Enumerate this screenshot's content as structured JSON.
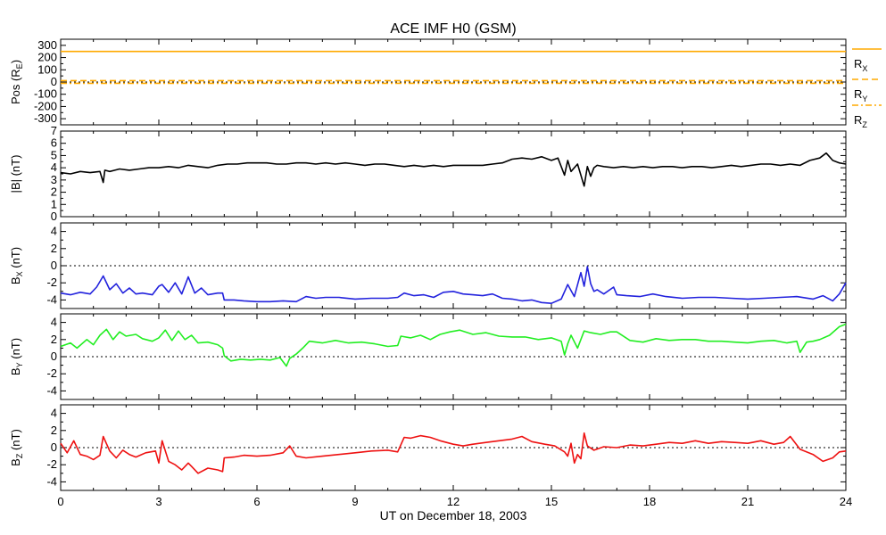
{
  "title": "ACE IMF H0 (GSM)",
  "xlabel": "UT on December 18, 2003",
  "x_ticks": [
    "0",
    "3",
    "6",
    "9",
    "12",
    "15",
    "18",
    "21",
    "24"
  ],
  "chart_data": [
    {
      "type": "line",
      "name": "position",
      "ylabel_parts": [
        "Pos (R",
        "E",
        ")"
      ],
      "ylim": [
        -350,
        350
      ],
      "y_ticks": [
        300,
        200,
        100,
        0,
        -100,
        -200,
        -300
      ],
      "y_ticks_labels": [
        "300",
        "200",
        "100",
        "0",
        "-100",
        "-200",
        "-300"
      ],
      "x": [
        0,
        24
      ],
      "series": [
        {
          "key": "rx",
          "label_main": "R",
          "label_sub": "X",
          "color": "#ffaa00",
          "dash": "",
          "values": [
            250,
            250
          ]
        },
        {
          "key": "ry",
          "label_main": "R",
          "label_sub": "Y",
          "color": "#ffaa00",
          "dash": "7,4",
          "values": [
            12,
            12
          ]
        },
        {
          "key": "rz",
          "label_main": "R",
          "label_sub": "Z",
          "color": "#ffaa00",
          "dash": "7,3,2,3",
          "values": [
            -10,
            -10
          ]
        }
      ],
      "zero_line": true
    },
    {
      "type": "line",
      "name": "btotal",
      "ylabel_parts": [
        "|B| (nT)",
        "",
        ""
      ],
      "ylim": [
        0,
        7
      ],
      "y_ticks": [
        7,
        6,
        5,
        4,
        3,
        2,
        1,
        0
      ],
      "y_ticks_labels": [
        "7",
        "6",
        "5",
        "4",
        "3",
        "2",
        "1",
        "0"
      ],
      "zero_line": false,
      "series": [
        {
          "key": "bt",
          "color": "#000000",
          "x": [
            0,
            0.3,
            0.6,
            0.9,
            1.2,
            1.3,
            1.35,
            1.5,
            1.8,
            2.1,
            2.4,
            2.7,
            3.0,
            3.3,
            3.6,
            3.9,
            4.2,
            4.5,
            4.8,
            5.1,
            5.4,
            5.7,
            6.0,
            6.3,
            6.6,
            6.9,
            7.2,
            7.5,
            7.8,
            8.1,
            8.4,
            8.7,
            9.0,
            9.3,
            9.6,
            9.9,
            10.2,
            10.5,
            10.8,
            11.1,
            11.4,
            11.7,
            12.0,
            12.3,
            12.6,
            12.9,
            13.2,
            13.5,
            13.8,
            14.1,
            14.4,
            14.7,
            15.0,
            15.2,
            15.4,
            15.5,
            15.6,
            15.8,
            16.0,
            16.1,
            16.2,
            16.3,
            16.4,
            16.6,
            16.9,
            17.2,
            17.5,
            17.8,
            18.1,
            18.4,
            18.7,
            19.0,
            19.3,
            19.6,
            19.9,
            20.2,
            20.5,
            20.8,
            21.1,
            21.4,
            21.7,
            22.0,
            22.3,
            22.6,
            22.9,
            23.2,
            23.4,
            23.5,
            23.6,
            23.8,
            24.0
          ],
          "values": [
            3.6,
            3.5,
            3.7,
            3.6,
            3.7,
            2.8,
            3.8,
            3.7,
            3.9,
            3.8,
            3.9,
            4.0,
            4.0,
            4.1,
            4.0,
            4.2,
            4.1,
            4.0,
            4.2,
            4.3,
            4.3,
            4.4,
            4.4,
            4.4,
            4.3,
            4.3,
            4.4,
            4.4,
            4.3,
            4.4,
            4.3,
            4.4,
            4.3,
            4.2,
            4.3,
            4.3,
            4.2,
            4.1,
            4.2,
            4.1,
            4.2,
            4.1,
            4.2,
            4.2,
            4.2,
            4.2,
            4.3,
            4.4,
            4.7,
            4.8,
            4.7,
            4.9,
            4.6,
            4.8,
            3.4,
            4.6,
            3.7,
            4.3,
            2.5,
            4.1,
            3.3,
            4.0,
            4.2,
            4.1,
            4.0,
            4.1,
            4.0,
            4.1,
            4.0,
            4.1,
            4.1,
            4.0,
            4.1,
            4.1,
            4.0,
            4.1,
            4.2,
            4.1,
            4.2,
            4.3,
            4.3,
            4.2,
            4.3,
            4.2,
            4.6,
            4.8,
            5.2,
            4.9,
            4.6,
            4.4,
            4.3
          ]
        }
      ]
    },
    {
      "type": "line",
      "name": "bx",
      "ylabel_parts": [
        "B",
        "X",
        " (nT)"
      ],
      "ylim": [
        -5,
        5
      ],
      "y_ticks": [
        4,
        2,
        0,
        -2,
        -4
      ],
      "y_ticks_labels": [
        "4",
        "2",
        "0",
        "-2",
        "-4"
      ],
      "zero_line": true,
      "series": [
        {
          "key": "bx",
          "color": "#2222dd",
          "x": [
            0,
            0.3,
            0.6,
            0.9,
            1.1,
            1.3,
            1.5,
            1.7,
            1.9,
            2.1,
            2.3,
            2.5,
            2.8,
            3.0,
            3.1,
            3.3,
            3.5,
            3.7,
            3.9,
            4.1,
            4.3,
            4.5,
            4.8,
            4.95,
            5.0,
            5.3,
            5.6,
            6.0,
            6.4,
            6.8,
            7.2,
            7.5,
            7.8,
            8.1,
            8.5,
            9.0,
            9.5,
            10.0,
            10.3,
            10.5,
            10.8,
            11.1,
            11.4,
            11.7,
            12.0,
            12.3,
            12.6,
            12.9,
            13.2,
            13.5,
            13.8,
            14.1,
            14.4,
            14.7,
            15.0,
            15.3,
            15.5,
            15.7,
            15.9,
            16.0,
            16.1,
            16.2,
            16.3,
            16.4,
            16.6,
            16.9,
            17.0,
            17.3,
            17.7,
            18.1,
            18.5,
            19.0,
            19.5,
            20.0,
            20.5,
            21.0,
            21.5,
            22.0,
            22.5,
            23.0,
            23.3,
            23.6,
            23.8,
            24.0
          ],
          "values": [
            -3.2,
            -3.4,
            -3.1,
            -3.3,
            -2.5,
            -1.2,
            -2.8,
            -2.1,
            -3.2,
            -2.6,
            -3.3,
            -3.2,
            -3.4,
            -2.4,
            -2.2,
            -3.1,
            -2.0,
            -3.3,
            -1.3,
            -3.2,
            -2.6,
            -3.4,
            -3.2,
            -3.2,
            -4.0,
            -4.0,
            -4.1,
            -4.2,
            -4.2,
            -4.1,
            -4.2,
            -3.6,
            -3.8,
            -3.7,
            -3.7,
            -3.9,
            -3.8,
            -3.8,
            -3.7,
            -3.2,
            -3.5,
            -3.4,
            -3.7,
            -3.1,
            -3.0,
            -3.3,
            -3.4,
            -3.5,
            -3.3,
            -3.8,
            -3.9,
            -4.1,
            -4.0,
            -4.3,
            -4.4,
            -3.9,
            -2.2,
            -3.6,
            -0.8,
            -2.4,
            -0.1,
            -2.1,
            -3.0,
            -2.8,
            -3.3,
            -2.5,
            -3.4,
            -3.5,
            -3.6,
            -3.3,
            -3.6,
            -3.8,
            -3.7,
            -3.7,
            -3.8,
            -3.9,
            -3.8,
            -3.7,
            -3.6,
            -3.9,
            -3.5,
            -4.1,
            -3.3,
            -2.0
          ]
        }
      ]
    },
    {
      "type": "line",
      "name": "by",
      "ylabel_parts": [
        "B",
        "Y",
        " (nT)"
      ],
      "ylim": [
        -5,
        5
      ],
      "y_ticks": [
        4,
        2,
        0,
        -2,
        -4
      ],
      "y_ticks_labels": [
        "4",
        "2",
        "0",
        "-2",
        "-4"
      ],
      "zero_line": true,
      "series": [
        {
          "key": "by",
          "color": "#22ee22",
          "x": [
            0,
            0.3,
            0.5,
            0.8,
            1.0,
            1.2,
            1.4,
            1.6,
            1.8,
            2.0,
            2.3,
            2.5,
            2.8,
            3.0,
            3.2,
            3.4,
            3.6,
            3.8,
            4.0,
            4.2,
            4.5,
            4.8,
            4.95,
            5.0,
            5.2,
            5.5,
            5.8,
            6.1,
            6.4,
            6.7,
            6.9,
            7.0,
            7.2,
            7.4,
            7.6,
            8.0,
            8.4,
            8.8,
            9.2,
            9.6,
            10.0,
            10.3,
            10.4,
            10.7,
            11.0,
            11.3,
            11.6,
            11.9,
            12.2,
            12.6,
            13.0,
            13.4,
            13.8,
            14.2,
            14.6,
            15.0,
            15.3,
            15.4,
            15.5,
            15.6,
            15.8,
            16.0,
            16.2,
            16.5,
            16.8,
            17.0,
            17.4,
            17.8,
            18.2,
            18.6,
            19.0,
            19.4,
            19.8,
            20.2,
            20.6,
            21.0,
            21.4,
            21.8,
            22.2,
            22.5,
            22.6,
            22.8,
            23.0,
            23.2,
            23.5,
            23.8,
            24.0
          ],
          "values": [
            1.2,
            1.6,
            1.0,
            2.0,
            1.4,
            2.5,
            3.2,
            2.0,
            2.9,
            2.4,
            2.6,
            2.1,
            1.8,
            2.2,
            3.1,
            1.9,
            3.0,
            2.0,
            2.5,
            1.6,
            1.7,
            1.4,
            1.0,
            0.1,
            -0.5,
            -0.3,
            -0.4,
            -0.3,
            -0.4,
            -0.1,
            -1.1,
            -0.2,
            0.3,
            1.0,
            1.8,
            1.6,
            1.9,
            1.6,
            1.7,
            1.5,
            1.2,
            1.3,
            2.4,
            2.2,
            2.5,
            2.0,
            2.6,
            2.9,
            3.1,
            2.6,
            2.8,
            2.4,
            2.3,
            2.3,
            2.0,
            2.2,
            1.8,
            0.2,
            1.5,
            2.5,
            1.0,
            3.0,
            2.8,
            2.6,
            2.9,
            2.9,
            1.9,
            1.7,
            2.1,
            1.9,
            2.0,
            2.0,
            1.8,
            1.8,
            1.7,
            1.6,
            1.8,
            1.9,
            1.6,
            1.8,
            0.5,
            1.7,
            1.8,
            2.0,
            2.5,
            3.5,
            3.8
          ]
        }
      ]
    },
    {
      "type": "line",
      "name": "bz",
      "ylabel_parts": [
        "B",
        "Z",
        " (nT)"
      ],
      "ylim": [
        -5,
        5
      ],
      "y_ticks": [
        4,
        2,
        0,
        -2,
        -4
      ],
      "y_ticks_labels": [
        "4",
        "2",
        "0",
        "-2",
        "-4"
      ],
      "zero_line": true,
      "series": [
        {
          "key": "bz",
          "color": "#ee1111",
          "x": [
            0,
            0.2,
            0.4,
            0.6,
            0.8,
            1.0,
            1.2,
            1.3,
            1.5,
            1.7,
            1.9,
            2.1,
            2.3,
            2.6,
            2.9,
            3.0,
            3.1,
            3.3,
            3.5,
            3.7,
            3.9,
            4.0,
            4.2,
            4.5,
            4.8,
            4.95,
            5.0,
            5.3,
            5.6,
            6.0,
            6.4,
            6.8,
            7.0,
            7.2,
            7.5,
            8.0,
            8.5,
            9.0,
            9.5,
            10.0,
            10.3,
            10.5,
            10.7,
            11.0,
            11.3,
            11.6,
            12.0,
            12.3,
            12.6,
            13.0,
            13.4,
            13.8,
            14.1,
            14.4,
            14.8,
            15.1,
            15.4,
            15.5,
            15.6,
            15.7,
            15.8,
            15.9,
            16.0,
            16.1,
            16.3,
            16.6,
            17.0,
            17.4,
            17.8,
            18.2,
            18.6,
            19.0,
            19.4,
            19.8,
            20.2,
            20.6,
            21.0,
            21.4,
            21.8,
            22.1,
            22.3,
            22.6,
            23.0,
            23.3,
            23.6,
            23.8,
            24.0
          ],
          "values": [
            0.5,
            -0.6,
            0.8,
            -0.8,
            -1.0,
            -1.4,
            -0.9,
            1.3,
            -0.4,
            -1.2,
            -0.3,
            -0.8,
            -1.1,
            -0.6,
            -0.4,
            -1.8,
            0.8,
            -1.6,
            -2.0,
            -2.6,
            -1.8,
            -2.2,
            -3.0,
            -2.4,
            -2.6,
            -2.8,
            -1.2,
            -1.1,
            -0.9,
            -1.0,
            -0.9,
            -0.6,
            0.2,
            -1.0,
            -1.2,
            -1.0,
            -0.8,
            -0.6,
            -0.4,
            -0.3,
            -0.5,
            1.2,
            1.1,
            1.4,
            1.2,
            0.8,
            0.4,
            0.2,
            0.4,
            0.6,
            0.8,
            1.0,
            1.3,
            0.7,
            0.4,
            0.2,
            -0.5,
            -1.0,
            0.5,
            -1.8,
            -0.8,
            -1.3,
            1.7,
            0.2,
            -0.3,
            0.1,
            0.0,
            0.3,
            0.2,
            0.4,
            0.6,
            0.5,
            0.8,
            0.5,
            0.7,
            0.6,
            0.5,
            0.8,
            0.4,
            0.6,
            1.3,
            -0.2,
            -0.8,
            -1.6,
            -1.2,
            -0.5,
            -0.4
          ]
        }
      ]
    }
  ]
}
